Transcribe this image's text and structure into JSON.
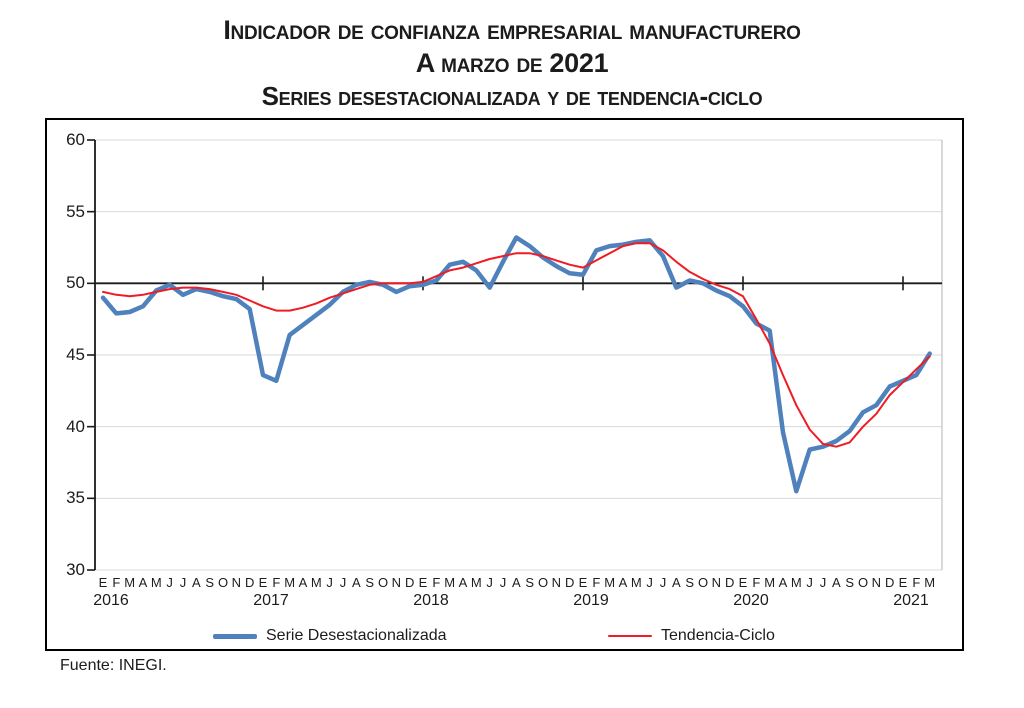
{
  "title": {
    "line1": "Indicador de confianza empresarial manufacturero",
    "line2": "A marzo de 2021",
    "line3": "Series desestacionalizada y de tendencia-ciclo"
  },
  "source_note": "Fuente: INEGI.",
  "legend": [
    {
      "label": "Serie Desestacionalizada",
      "color": "#4f81bd",
      "thick": true
    },
    {
      "label": "Tendencia-Ciclo",
      "color": "#ee1c25",
      "thick": false
    }
  ],
  "chart_data": {
    "type": "line",
    "title": "Indicador de confianza empresarial manufacturero a marzo de 2021",
    "x_unit": "month",
    "x_start": "2016-01",
    "x_end": "2021-03",
    "month_letters": "EFMAMJJASOND",
    "years": [
      "2016",
      "2017",
      "2018",
      "2019",
      "2020",
      "2021"
    ],
    "y_ticks": [
      30,
      35,
      40,
      45,
      50,
      55,
      60
    ],
    "ylim": [
      30,
      60
    ],
    "reference_line": 50,
    "grid": "horizontal",
    "legend_position": "bottom",
    "series": [
      {
        "name": "Serie Desestacionalizada",
        "values": [
          49.0,
          47.9,
          48.0,
          48.4,
          49.5,
          49.9,
          49.2,
          49.6,
          49.4,
          49.1,
          48.9,
          48.2,
          43.6,
          43.2,
          46.4,
          47.1,
          47.8,
          48.5,
          49.4,
          49.9,
          50.1,
          49.9,
          49.4,
          49.8,
          49.9,
          50.2,
          51.3,
          51.5,
          50.9,
          49.7,
          51.5,
          53.2,
          52.6,
          51.8,
          51.2,
          50.7,
          50.6,
          52.3,
          52.6,
          52.7,
          52.9,
          53.0,
          51.9,
          49.7,
          50.2,
          50.0,
          49.5,
          49.1,
          48.4,
          47.2,
          46.7,
          39.6,
          35.5,
          38.4,
          38.6,
          39.0,
          39.7,
          41.0,
          41.5,
          42.8,
          43.2,
          43.6,
          45.1
        ]
      },
      {
        "name": "Tendencia-Ciclo",
        "values": [
          49.4,
          49.2,
          49.1,
          49.2,
          49.4,
          49.6,
          49.7,
          49.7,
          49.6,
          49.4,
          49.2,
          48.8,
          48.4,
          48.1,
          48.1,
          48.3,
          48.6,
          49.0,
          49.3,
          49.6,
          49.9,
          50.0,
          50.0,
          50.0,
          50.1,
          50.5,
          50.9,
          51.1,
          51.4,
          51.7,
          51.9,
          52.1,
          52.1,
          51.9,
          51.6,
          51.3,
          51.1,
          51.6,
          52.1,
          52.6,
          52.8,
          52.8,
          52.3,
          51.5,
          50.8,
          50.3,
          49.9,
          49.6,
          49.1,
          47.5,
          45.8,
          43.6,
          41.5,
          39.8,
          38.8,
          38.6,
          38.9,
          40.0,
          40.9,
          42.2,
          43.1,
          44.0,
          44.9
        ]
      }
    ]
  }
}
